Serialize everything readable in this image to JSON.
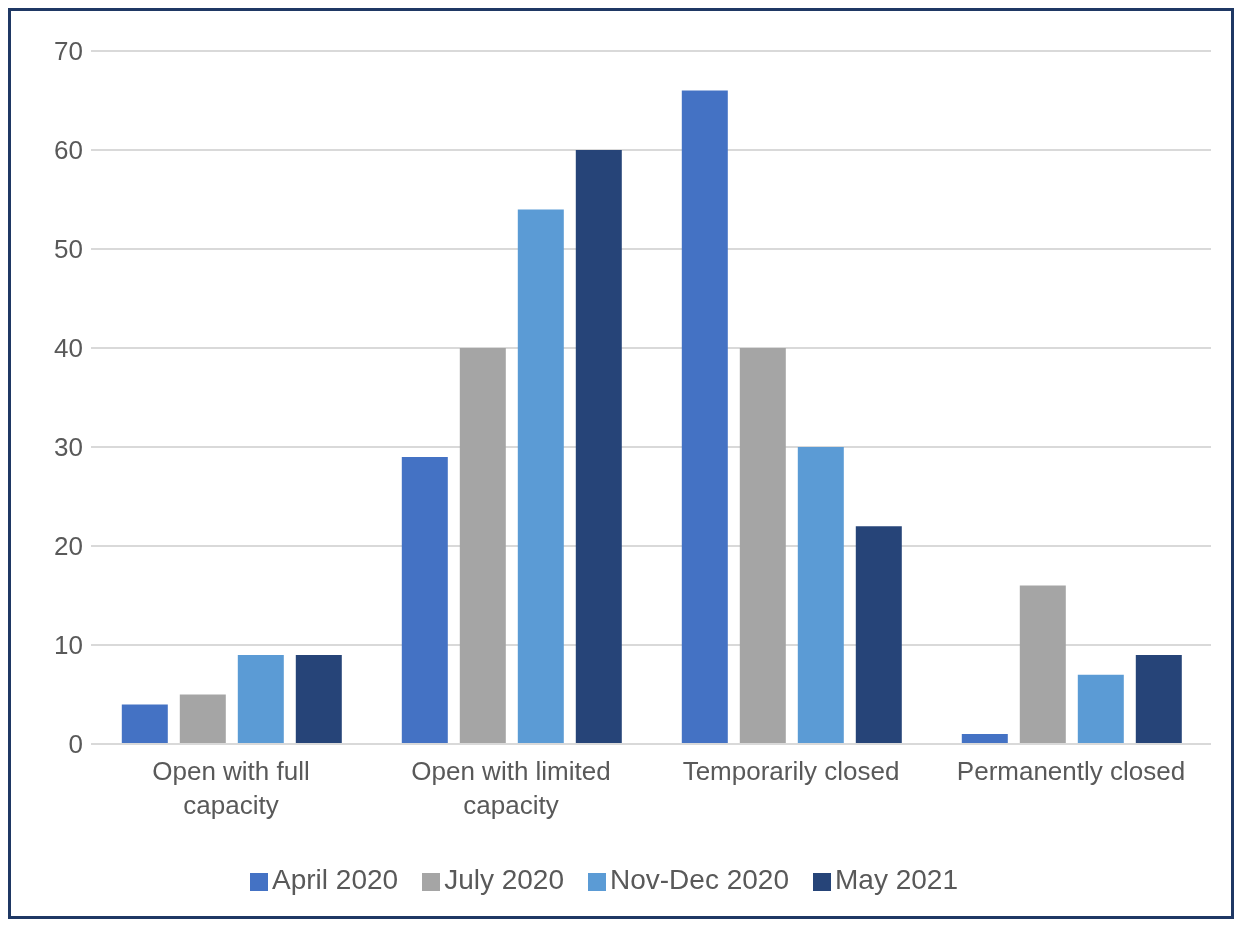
{
  "chart_data": {
    "type": "bar",
    "categories": [
      "Open with full capacity",
      "Open with limited capacity",
      "Temporarily closed",
      "Permanently closed"
    ],
    "series": [
      {
        "name": "April 2020",
        "color": "#4472c4",
        "values": [
          4,
          29,
          66,
          1
        ]
      },
      {
        "name": "July 2020",
        "color": "#a5a5a5",
        "values": [
          5,
          40,
          40,
          16
        ]
      },
      {
        "name": "Nov-Dec 2020",
        "color": "#5b9bd5",
        "values": [
          9,
          54,
          30,
          7
        ]
      },
      {
        "name": "May 2021",
        "color": "#264478",
        "values": [
          9,
          60,
          22,
          9
        ]
      }
    ],
    "ylim": [
      0,
      70
    ],
    "yticks": [
      0,
      10,
      20,
      30,
      40,
      50,
      60,
      70
    ],
    "grid": "y",
    "legend": "bottom"
  }
}
